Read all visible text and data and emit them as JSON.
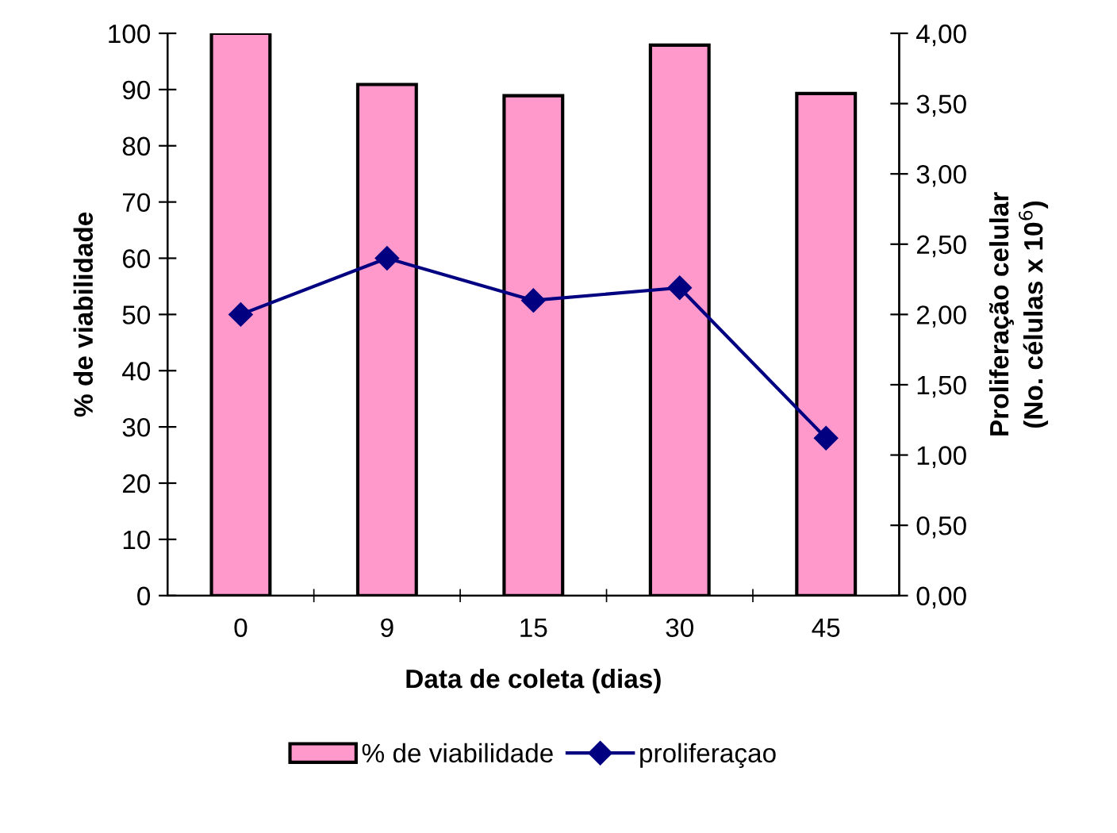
{
  "chart_data": {
    "type": "bar",
    "xlabel": "Data de coleta (dias)",
    "ylabel": "% de viabilidade",
    "y2label": "Proliferação celular\n(No. células x 10$^{6}$)",
    "categories": [
      "0",
      "9",
      "15",
      "30",
      "45"
    ],
    "series": [
      {
        "name": "% de viabilidade",
        "color": "#ff99cc",
        "values": [
          100,
          90.9,
          88.9,
          97.9,
          89.3
        ]
      },
      {
        "name": "proliferaçao",
        "type": "line",
        "axis": "y2",
        "color": "#000080",
        "marker": "diamond",
        "line_style": "solid",
        "values": [
          2.0,
          2.4,
          2.1,
          2.19,
          1.12
        ]
      }
    ],
    "ylim": [
      0,
      100
    ],
    "yticks": [
      0,
      10,
      20,
      30,
      40,
      50,
      60,
      70,
      80,
      90,
      100
    ],
    "y2lim": [
      0,
      4
    ],
    "y2ticks": [
      {
        "value": 0,
        "label": "0,00"
      },
      {
        "value": 0.5,
        "label": "0,50"
      },
      {
        "value": 1,
        "label": "1,00"
      },
      {
        "value": 1.5,
        "label": "1,50"
      },
      {
        "value": 2,
        "label": "2,00"
      },
      {
        "value": 2.5,
        "label": "2,50"
      },
      {
        "value": 3,
        "label": "3,00"
      },
      {
        "value": 3.5,
        "label": "3,50"
      },
      {
        "value": 4,
        "label": "4,00"
      }
    ],
    "grid": false,
    "legend": "bottom"
  }
}
